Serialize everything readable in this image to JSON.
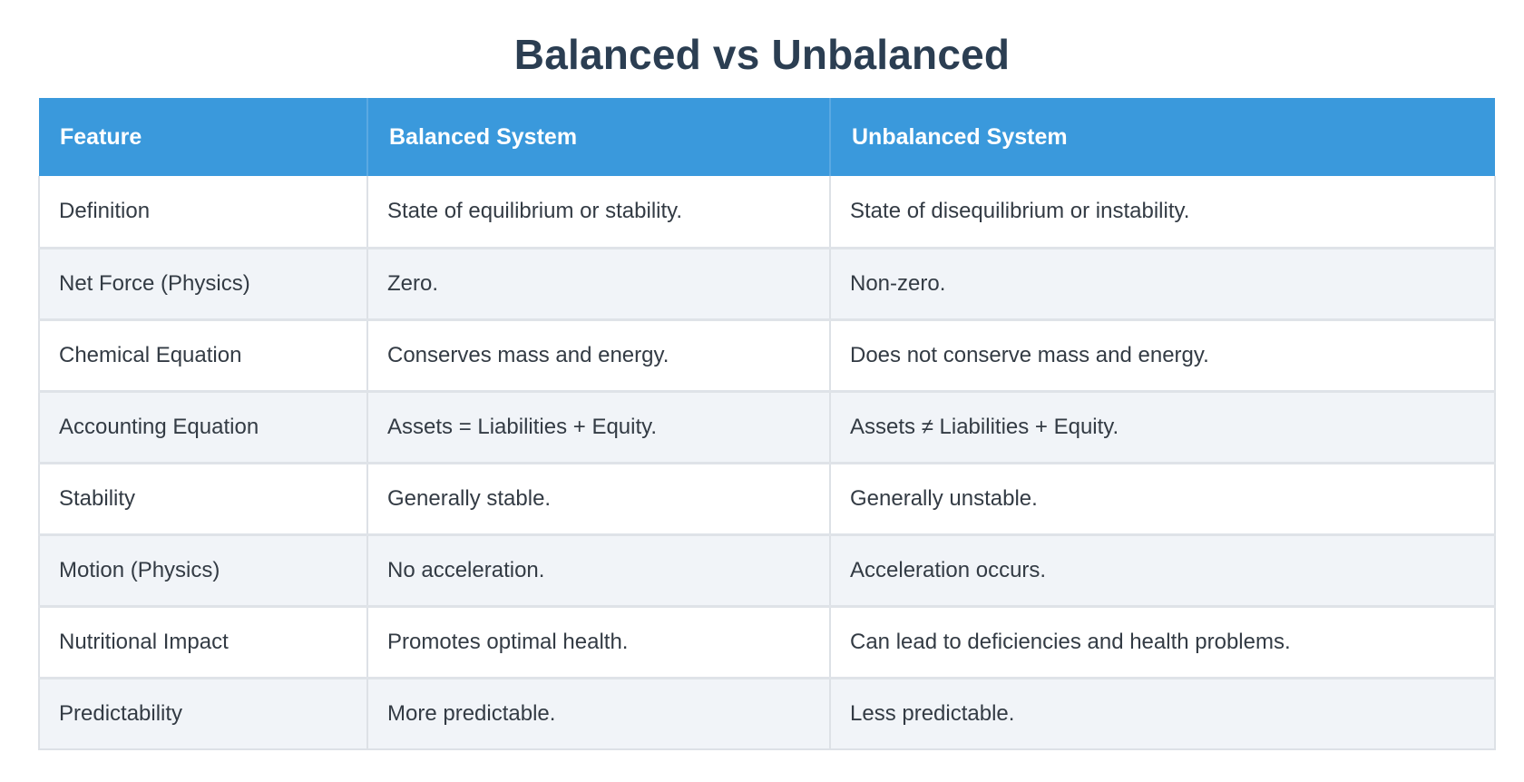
{
  "title": "Balanced vs Unbalanced",
  "table": {
    "headers": [
      "Feature",
      "Balanced System",
      "Unbalanced System"
    ],
    "rows": [
      [
        "Definition",
        "State of equilibrium or stability.",
        "State of disequilibrium or instability."
      ],
      [
        "Net Force (Physics)",
        "Zero.",
        "Non-zero."
      ],
      [
        "Chemical Equation",
        "Conserves mass and energy.",
        "Does not conserve mass and energy."
      ],
      [
        "Accounting Equation",
        "Assets = Liabilities + Equity.",
        "Assets ≠ Liabilities + Equity."
      ],
      [
        "Stability",
        "Generally stable.",
        "Generally unstable."
      ],
      [
        "Motion (Physics)",
        "No acceleration.",
        "Acceleration occurs."
      ],
      [
        "Nutritional Impact",
        "Promotes optimal health.",
        "Can lead to deficiencies and health problems."
      ],
      [
        "Predictability",
        "More predictable.",
        "Less predictable."
      ]
    ]
  },
  "colors": {
    "header_bg": "#3a99dc",
    "title": "#2b3e52",
    "row_alt": "#f1f4f8"
  }
}
